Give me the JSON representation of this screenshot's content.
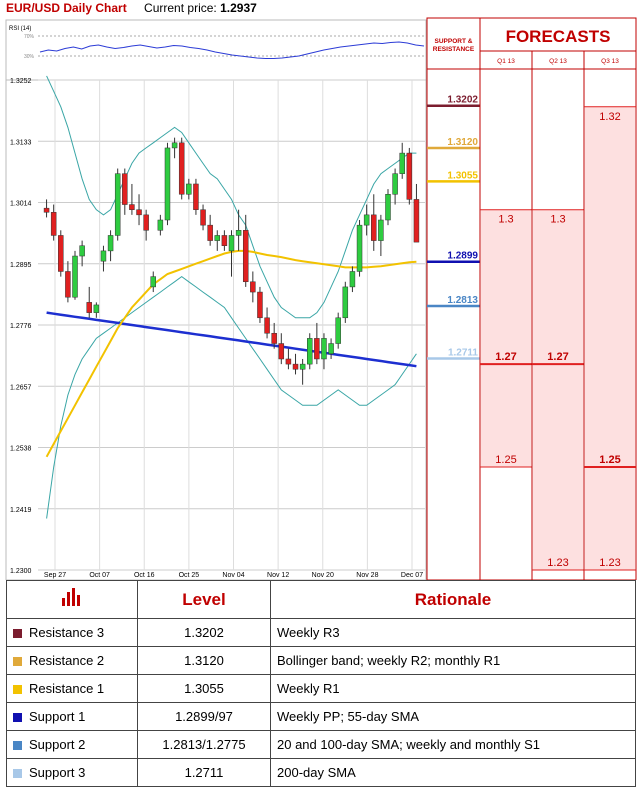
{
  "header": {
    "title": "EUR/USD Daily Chart",
    "price_label": "Current price:",
    "price_value": "1.2937"
  },
  "rsi": {
    "label": "RSI (14)",
    "level_high": "70%",
    "level_low": "30%",
    "values": [
      48,
      52,
      50,
      55,
      58,
      54,
      60,
      62,
      58,
      55,
      57,
      60,
      62,
      59,
      56,
      58,
      61,
      60,
      57,
      55,
      52,
      48,
      45,
      42,
      40,
      38,
      36,
      35,
      35,
      36,
      38,
      40,
      44,
      48,
      52,
      55,
      58,
      60,
      62,
      64,
      66,
      65,
      67,
      68,
      66,
      62,
      60
    ]
  },
  "chart_data": {
    "type": "candlestick",
    "ylim": [
      1.23,
      1.3252
    ],
    "yticks": [
      "1.3252",
      "1.3133",
      "1.3014",
      "1.2895",
      "1.2776",
      "1.2657",
      "1.2538",
      "1.2419",
      "1.2300"
    ],
    "xticks": [
      "Sep 27",
      "Oct 07",
      "Oct 16",
      "Oct 25",
      "Nov 04",
      "Nov 12",
      "Nov 20",
      "Nov 28",
      "Dec 07"
    ],
    "candles": [
      [
        1.3003,
        1.302,
        1.2985,
        1.2995
      ],
      [
        1.2995,
        1.301,
        1.294,
        1.295
      ],
      [
        1.295,
        1.296,
        1.287,
        1.288
      ],
      [
        1.288,
        1.29,
        1.282,
        1.283
      ],
      [
        1.283,
        1.292,
        1.2825,
        1.291
      ],
      [
        1.291,
        1.294,
        1.289,
        1.293
      ],
      [
        1.282,
        1.285,
        1.279,
        1.28
      ],
      [
        1.28,
        1.282,
        1.279,
        1.2815
      ],
      [
        1.29,
        1.293,
        1.288,
        1.292
      ],
      [
        1.292,
        1.296,
        1.29,
        1.295
      ],
      [
        1.295,
        1.308,
        1.294,
        1.307
      ],
      [
        1.307,
        1.308,
        1.299,
        1.301
      ],
      [
        1.301,
        1.305,
        1.299,
        1.3
      ],
      [
        1.3,
        1.303,
        1.297,
        1.299
      ],
      [
        1.299,
        1.3,
        1.294,
        1.296
      ],
      [
        1.285,
        1.288,
        1.284,
        1.287
      ],
      [
        1.296,
        1.299,
        1.295,
        1.298
      ],
      [
        1.298,
        1.313,
        1.297,
        1.312
      ],
      [
        1.312,
        1.314,
        1.31,
        1.313
      ],
      [
        1.313,
        1.314,
        1.302,
        1.303
      ],
      [
        1.303,
        1.306,
        1.302,
        1.305
      ],
      [
        1.305,
        1.306,
        1.299,
        1.3
      ],
      [
        1.3,
        1.301,
        1.296,
        1.297
      ],
      [
        1.297,
        1.299,
        1.293,
        1.294
      ],
      [
        1.294,
        1.296,
        1.292,
        1.295
      ],
      [
        1.295,
        1.296,
        1.292,
        1.293
      ],
      [
        1.292,
        1.296,
        1.287,
        1.295
      ],
      [
        1.295,
        1.3,
        1.292,
        1.296
      ],
      [
        1.296,
        1.299,
        1.285,
        1.286
      ],
      [
        1.286,
        1.288,
        1.282,
        1.284
      ],
      [
        1.284,
        1.285,
        1.278,
        1.279
      ],
      [
        1.279,
        1.281,
        1.275,
        1.276
      ],
      [
        1.276,
        1.278,
        1.273,
        1.274
      ],
      [
        1.274,
        1.276,
        1.27,
        1.271
      ],
      [
        1.271,
        1.273,
        1.269,
        1.27
      ],
      [
        1.27,
        1.272,
        1.268,
        1.269
      ],
      [
        1.269,
        1.271,
        1.266,
        1.27
      ],
      [
        1.27,
        1.276,
        1.269,
        1.275
      ],
      [
        1.275,
        1.278,
        1.27,
        1.271
      ],
      [
        1.271,
        1.276,
        1.269,
        1.275
      ],
      [
        1.272,
        1.275,
        1.271,
        1.274
      ],
      [
        1.274,
        1.28,
        1.273,
        1.279
      ],
      [
        1.279,
        1.286,
        1.278,
        1.285
      ],
      [
        1.285,
        1.289,
        1.284,
        1.288
      ],
      [
        1.288,
        1.298,
        1.287,
        1.297
      ],
      [
        1.297,
        1.301,
        1.295,
        1.299
      ],
      [
        1.299,
        1.303,
        1.292,
        1.294
      ],
      [
        1.294,
        1.299,
        1.291,
        1.298
      ],
      [
        1.298,
        1.304,
        1.297,
        1.303
      ],
      [
        1.303,
        1.308,
        1.301,
        1.307
      ],
      [
        1.307,
        1.313,
        1.306,
        1.311
      ],
      [
        1.311,
        1.312,
        1.301,
        1.302
      ],
      [
        1.302,
        1.305,
        1.294,
        1.2937
      ]
    ],
    "sma55": [
      null,
      null,
      null,
      null,
      null,
      null,
      null,
      null,
      null,
      null,
      null,
      null,
      null,
      null,
      null,
      null,
      null,
      null,
      null,
      null,
      null,
      null,
      null,
      null,
      null,
      null,
      null,
      null,
      null,
      null,
      null,
      null,
      null,
      null,
      null,
      null,
      null,
      null,
      null,
      null,
      null,
      null,
      null,
      null,
      null,
      null,
      null,
      null,
      null,
      null,
      null,
      null,
      null
    ],
    "bollinger_upper": [
      1.326,
      1.323,
      1.32,
      1.316,
      1.311,
      1.306,
      1.302,
      1.3,
      1.299,
      1.3,
      1.303,
      1.306,
      1.309,
      1.311,
      1.312,
      1.313,
      1.314,
      1.315,
      1.316,
      1.315,
      1.313,
      1.311,
      1.309,
      1.307,
      1.306,
      1.304,
      1.302,
      1.299,
      1.297,
      1.293,
      1.289,
      1.286,
      1.283,
      1.281,
      1.28,
      1.279,
      1.279,
      1.279,
      1.28,
      1.282,
      1.285,
      1.288,
      1.292,
      1.296,
      1.299,
      1.302,
      1.305,
      1.307,
      1.308,
      1.309,
      1.31,
      1.311,
      1.311
    ],
    "bollinger_lower": [
      1.24,
      1.25,
      1.258,
      1.264,
      1.268,
      1.271,
      1.273,
      1.275,
      1.276,
      1.277,
      1.278,
      1.279,
      1.28,
      1.281,
      1.282,
      1.283,
      1.284,
      1.285,
      1.286,
      1.287,
      1.286,
      1.285,
      1.284,
      1.283,
      1.282,
      1.281,
      1.279,
      1.277,
      1.275,
      1.273,
      1.271,
      1.269,
      1.267,
      1.265,
      1.264,
      1.263,
      1.262,
      1.262,
      1.262,
      1.263,
      1.264,
      1.265,
      1.264,
      1.263,
      1.262,
      1.262,
      1.263,
      1.264,
      1.265,
      1.266,
      1.268,
      1.27,
      1.272
    ],
    "sma_slow": [
      1.28,
      1.2798,
      1.2796,
      1.2794,
      1.2792,
      1.279,
      1.2788,
      1.2786,
      1.2784,
      1.2782,
      1.278,
      1.2778,
      1.2776,
      1.2774,
      1.2772,
      1.277,
      1.2768,
      1.2766,
      1.2764,
      1.2762,
      1.276,
      1.2758,
      1.2756,
      1.2754,
      1.2752,
      1.275,
      1.2748,
      1.2746,
      1.2744,
      1.2742,
      1.274,
      1.2738,
      1.2736,
      1.2734,
      1.2732,
      1.273,
      1.2728,
      1.2726,
      1.2724,
      1.2722,
      1.272,
      1.2718,
      1.2716,
      1.2714,
      1.2712,
      1.271,
      1.2708,
      1.2706,
      1.2704,
      1.2702,
      1.27,
      1.2698,
      1.2696
    ],
    "sma_mid": [
      1.252,
      1.2545,
      1.257,
      1.2595,
      1.262,
      1.2645,
      1.267,
      1.2695,
      1.272,
      1.2745,
      1.277,
      1.279,
      1.281,
      1.2825,
      1.284,
      1.2855,
      1.2865,
      1.2875,
      1.288,
      1.2885,
      1.289,
      1.2895,
      1.29,
      1.2905,
      1.291,
      1.2915,
      1.2918,
      1.292,
      1.292,
      1.2918,
      1.2915,
      1.2912,
      1.291,
      1.2908,
      1.2905,
      1.2902,
      1.29,
      1.2898,
      1.2896,
      1.2894,
      1.2892,
      1.289,
      1.2888,
      1.2888,
      1.2888,
      1.2888,
      1.2889,
      1.289,
      1.2892,
      1.2894,
      1.2896,
      1.2898,
      1.2899
    ]
  },
  "levels_panel": {
    "title": "SUPPORT & RESISTANCE",
    "levels": [
      {
        "value": "1.3202",
        "price": 1.3202,
        "color": "#7b1c2e"
      },
      {
        "value": "1.3120",
        "price": 1.312,
        "color": "#e0a93a"
      },
      {
        "value": "1.3055",
        "price": 1.3055,
        "color": "#f2c200"
      },
      {
        "value": "1.2899",
        "price": 1.2899,
        "color": "#1010b0"
      },
      {
        "value": "1.2813",
        "price": 1.2813,
        "color": "#4a86c5"
      },
      {
        "value": "1.2711",
        "price": 1.2711,
        "color": "#a8c8e8"
      }
    ]
  },
  "forecasts": {
    "title": "FORECASTS",
    "columns": [
      {
        "label": "Q1 13",
        "values": [
          {
            "text": "1.3",
            "price": 1.3,
            "bold": false
          },
          {
            "text": "1.27",
            "price": 1.27,
            "bold": true
          },
          {
            "text": "1.25",
            "price": 1.25,
            "bold": false
          }
        ]
      },
      {
        "label": "Q2 13",
        "values": [
          {
            "text": "1.3",
            "price": 1.3,
            "bold": false
          },
          {
            "text": "1.27",
            "price": 1.27,
            "bold": true
          },
          {
            "text": "1.23",
            "price": 1.23,
            "bold": false
          }
        ]
      },
      {
        "label": "Q3 13",
        "values": [
          {
            "text": "1.32",
            "price": 1.32,
            "bold": false
          },
          {
            "text": "1.25",
            "price": 1.25,
            "bold": true
          },
          {
            "text": "1.23",
            "price": 1.23,
            "bold": false
          }
        ]
      }
    ]
  },
  "table": {
    "col_level": "Level",
    "col_rationale": "Rationale",
    "rows": [
      {
        "name": "Resistance 3",
        "level": "1.3202",
        "rationale": "Weekly R3",
        "color": "#7b1c2e"
      },
      {
        "name": "Resistance 2",
        "level": "1.3120",
        "rationale": "Bollinger band; weekly R2; monthly R1",
        "color": "#e0a93a"
      },
      {
        "name": "Resistance 1",
        "level": "1.3055",
        "rationale": "Weekly R1",
        "color": "#f2c200"
      },
      {
        "name": "Support 1",
        "level": "1.2899/97",
        "rationale": "Weekly PP; 55-day SMA",
        "color": "#1010b0"
      },
      {
        "name": "Support 2",
        "level": "1.2813/1.2775",
        "rationale": "20 and 100-day SMA; weekly and monthly S1",
        "color": "#4a86c5"
      },
      {
        "name": "Support 3",
        "level": "1.2711",
        "rationale": "200-day SMA",
        "color": "#a8c8e8"
      }
    ]
  }
}
